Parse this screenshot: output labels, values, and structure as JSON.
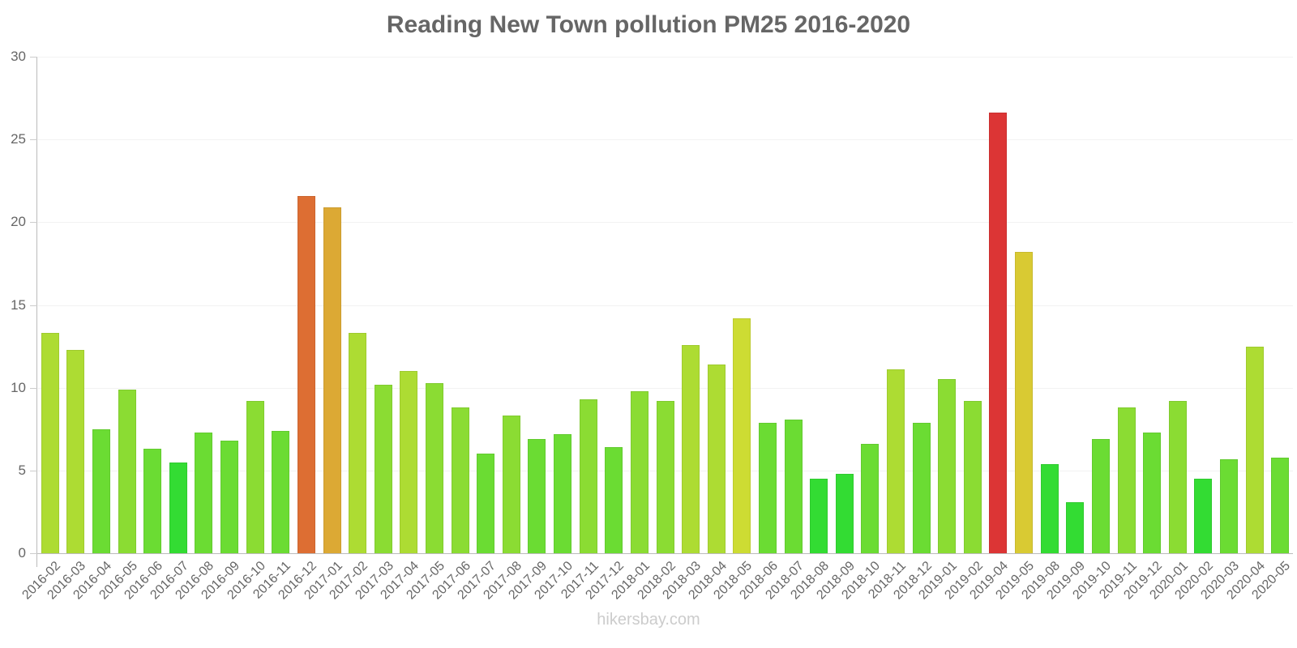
{
  "chart_data": {
    "type": "bar",
    "title": "Reading New Town pollution PM25 2016-2020",
    "xlabel": "",
    "ylabel": "",
    "ylim": [
      0,
      30
    ],
    "yticks": [
      0,
      5,
      10,
      15,
      20,
      25,
      30
    ],
    "grid": true,
    "legend": null,
    "categories": [
      "2016-02",
      "2016-03",
      "2016-04",
      "2016-05",
      "2016-06",
      "2016-07",
      "2016-08",
      "2016-09",
      "2016-10",
      "2016-11",
      "2016-12",
      "2017-01",
      "2017-02",
      "2017-03",
      "2017-04",
      "2017-05",
      "2017-06",
      "2017-07",
      "2017-08",
      "2017-09",
      "2017-10",
      "2017-11",
      "2017-12",
      "2018-01",
      "2018-02",
      "2018-03",
      "2018-04",
      "2018-05",
      "2018-06",
      "2018-07",
      "2018-08",
      "2018-09",
      "2018-10",
      "2018-11",
      "2018-12",
      "2019-01",
      "2019-02",
      "2019-04",
      "2019-05",
      "2019-08",
      "2019-09",
      "2019-10",
      "2019-11",
      "2019-12",
      "2020-01",
      "2020-02",
      "2020-03",
      "2020-04",
      "2020-05"
    ],
    "values": [
      13.3,
      12.3,
      7.5,
      9.9,
      6.3,
      5.5,
      7.3,
      6.8,
      9.2,
      7.4,
      21.6,
      20.9,
      13.3,
      10.2,
      11.0,
      10.3,
      8.8,
      6.0,
      8.3,
      6.9,
      7.2,
      9.3,
      6.4,
      9.8,
      9.2,
      12.6,
      11.4,
      14.2,
      7.9,
      8.1,
      4.5,
      4.8,
      6.6,
      11.1,
      7.9,
      10.5,
      9.2,
      26.6,
      18.2,
      5.4,
      3.1,
      6.9,
      8.8,
      7.3,
      9.2,
      4.5,
      5.7,
      12.5,
      5.8
    ],
    "colors": [
      "#ADDC33",
      "#ADDC33",
      "#6BDC33",
      "#8BDC33",
      "#6BDC33",
      "#33DC33",
      "#6BDC33",
      "#6BDC33",
      "#8BDC33",
      "#6BDC33",
      "#DD6E33",
      "#DCA934",
      "#ADDC33",
      "#8BDC33",
      "#ADDC33",
      "#8BDC33",
      "#8BDC33",
      "#6BDC33",
      "#8BDC33",
      "#6BDC33",
      "#6BDC33",
      "#8BDC33",
      "#6BDC33",
      "#8BDC33",
      "#8BDC33",
      "#ADDC33",
      "#ADDC33",
      "#CDDC33",
      "#6BDC33",
      "#6BDC33",
      "#33DC33",
      "#33DC33",
      "#6BDC33",
      "#ADDC33",
      "#6BDC33",
      "#8BDC33",
      "#8BDC33",
      "#DC3535",
      "#D9CA33",
      "#33DC33",
      "#33DC33",
      "#6BDC33",
      "#8BDC33",
      "#6BDC33",
      "#8BDC33",
      "#33DC33",
      "#6BDC33",
      "#ADDC33",
      "#6BDC33"
    ]
  },
  "footer": {
    "watermark": "hikersbay.com"
  }
}
